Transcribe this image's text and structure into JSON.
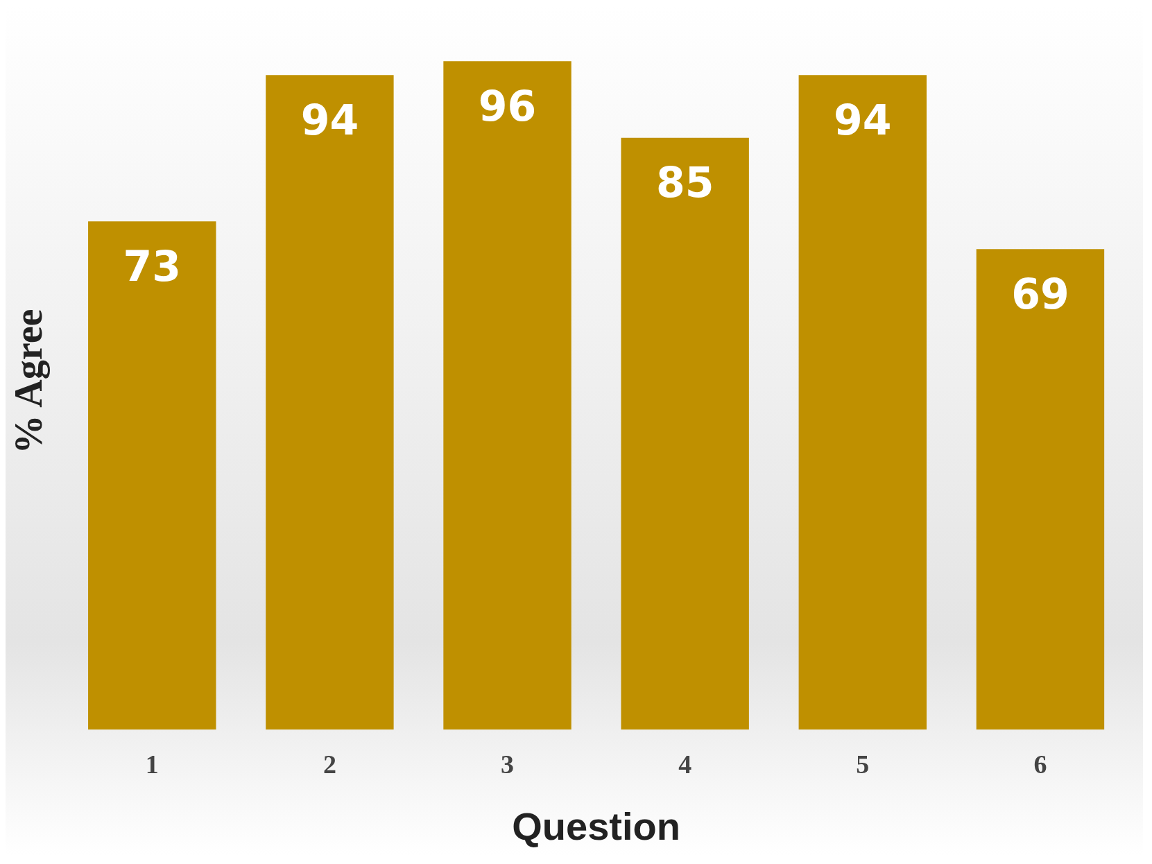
{
  "chart_data": {
    "type": "bar",
    "categories": [
      "1",
      "2",
      "3",
      "4",
      "5",
      "6"
    ],
    "values": [
      73,
      94,
      96,
      85,
      94,
      69
    ],
    "color": "#bf9000",
    "xlabel": "Question",
    "ylabel": "% Agree",
    "data_labels": true,
    "grid": false,
    "legend": false
  }
}
